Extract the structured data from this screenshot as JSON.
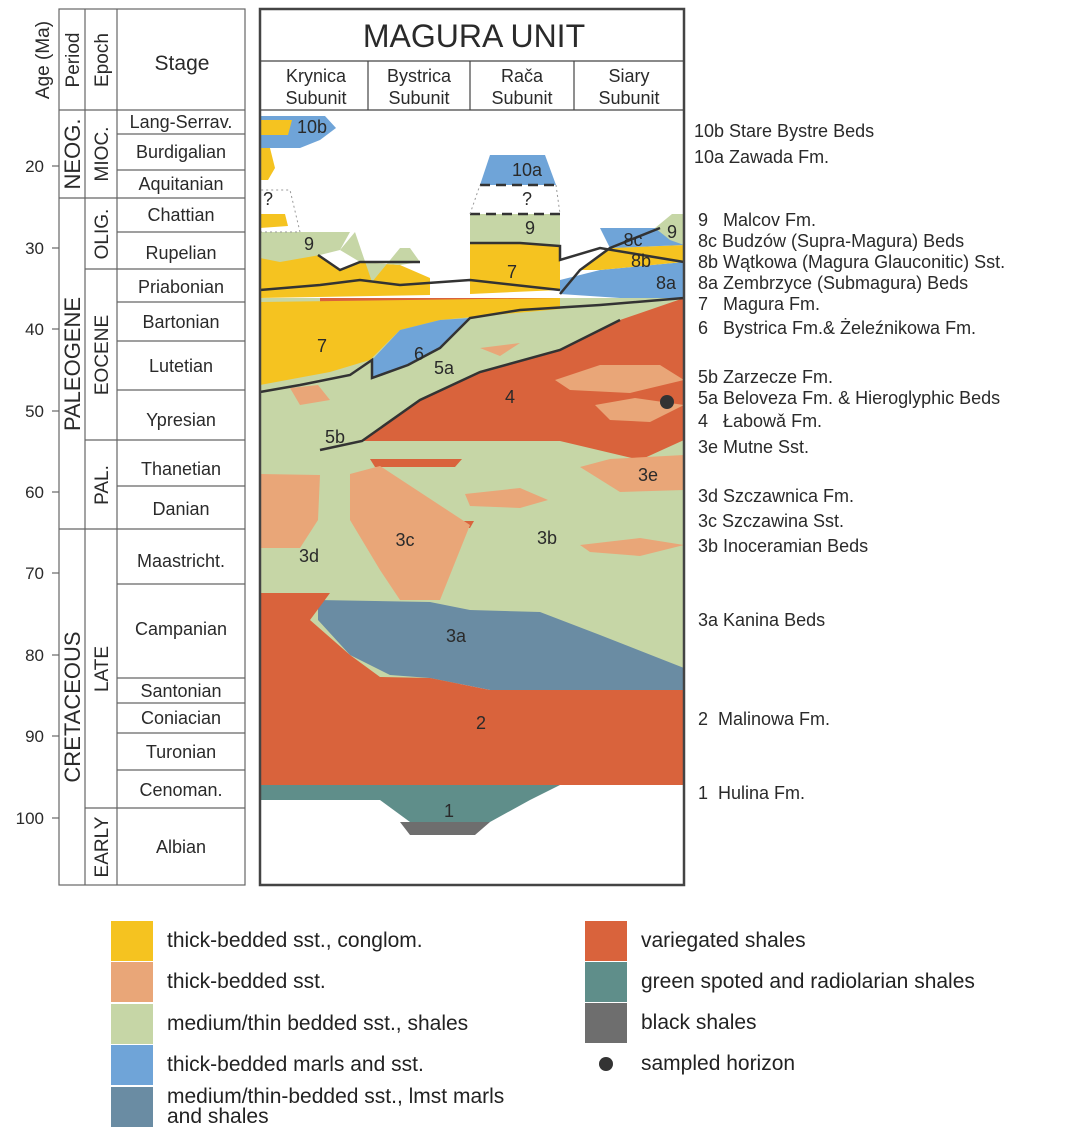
{
  "header": {
    "age_label": "Age (Ma)",
    "period_label": "Period",
    "epoch_label": "Epoch",
    "stage_label": "Stage",
    "title": "MAGURA UNIT",
    "subunits": [
      "Krynica Subunit",
      "Bystrica Subunit",
      "Rača Subunit",
      "Siary Subunit"
    ]
  },
  "age_ticks": [
    "20",
    "30",
    "40",
    "50",
    "60",
    "70",
    "80",
    "90",
    "100"
  ],
  "periods": {
    "neog": "NEOG.",
    "paleogene": "PALEOGENE",
    "cretaceous": "CRETACEOUS"
  },
  "epochs": {
    "mioc": "MIOC.",
    "olig": "OLIG.",
    "eocene": "EOCENE",
    "pal": "PAL.",
    "late": "LATE",
    "early": "EARLY"
  },
  "stages": [
    "Lang-Serrav.",
    "Burdigalian",
    "Aquitanian",
    "Chattian",
    "Rupelian",
    "Priabonian",
    "Bartonian",
    "Lutetian",
    "Ypresian",
    "Thanetian",
    "Danian",
    "Maastricht.",
    "Campanian",
    "Santonian",
    "Coniacian",
    "Turonian",
    "Cenoman.",
    "Albian"
  ],
  "unit_labels": {
    "u10b": "10b",
    "u10a": "10a",
    "q1": "?",
    "q2": "?",
    "u9a": "9",
    "u9b": "9",
    "u9c": "9",
    "u8c": "8c",
    "u8b": "8b",
    "u8a": "8a",
    "u7a": "7",
    "u7b": "7",
    "u6": "6",
    "u5a": "5a",
    "u5b": "5b",
    "u4": "4",
    "u3e": "3e",
    "u3d": "3d",
    "u3c": "3c",
    "u3b": "3b",
    "u3a": "3a",
    "u2": "2",
    "u1": "1"
  },
  "formations": [
    "10b Stare Bystre Beds",
    "10a Zawada Fm.",
    "9   Malcov Fm.",
    "8c Budzów (Supra-Magura) Beds",
    "8b Wątkowa (Magura Glauconitic) Sst.",
    "8a Zembrzyce (Submagura) Beds",
    "7   Magura Fm.",
    "6   Bystrica Fm.& Żeleźnikowa Fm.",
    "5b Zarzecze Fm.",
    "5a Beloveza Fm. & Hieroglyphic Beds",
    "4   Łabowǎ Fm.",
    "3e Mutne Sst.",
    "3d Szczawnica Fm.",
    "3c Szczawina Sst.",
    "3b Inoceramian Beds",
    "3a Kanina Beds",
    "2  Malinowa Fm.",
    "1  Hulina Fm."
  ],
  "legend": [
    {
      "label": "thick-bedded sst., conglom.",
      "color": "#F5C320"
    },
    {
      "label": "thick-bedded sst.",
      "color": "#E9A678"
    },
    {
      "label": "medium/thin bedded sst., shales",
      "color": "#C6D6A6"
    },
    {
      "label": "thick-bedded marls and sst.",
      "color": "#6FA4D8"
    },
    {
      "label": "medium/thin-bedded sst., lmst marls and shales",
      "color": "#6A8CA3"
    },
    {
      "label": "variegated shales",
      "color": "#D9633C"
    },
    {
      "label": "green spoted and radiolarian shales",
      "color": "#5F8E8A"
    },
    {
      "label": "black shales",
      "color": "#6E6E6E"
    },
    {
      "label": "sampled horizon",
      "color": "#333333"
    }
  ],
  "colors": {
    "yellow": "#F5C320",
    "peach": "#E9A678",
    "green": "#C6D6A6",
    "blue": "#6FA4D8",
    "slate": "#6A8CA3",
    "red": "#D9633C",
    "teal": "#5F8E8A",
    "black": "#6E6E6E"
  }
}
